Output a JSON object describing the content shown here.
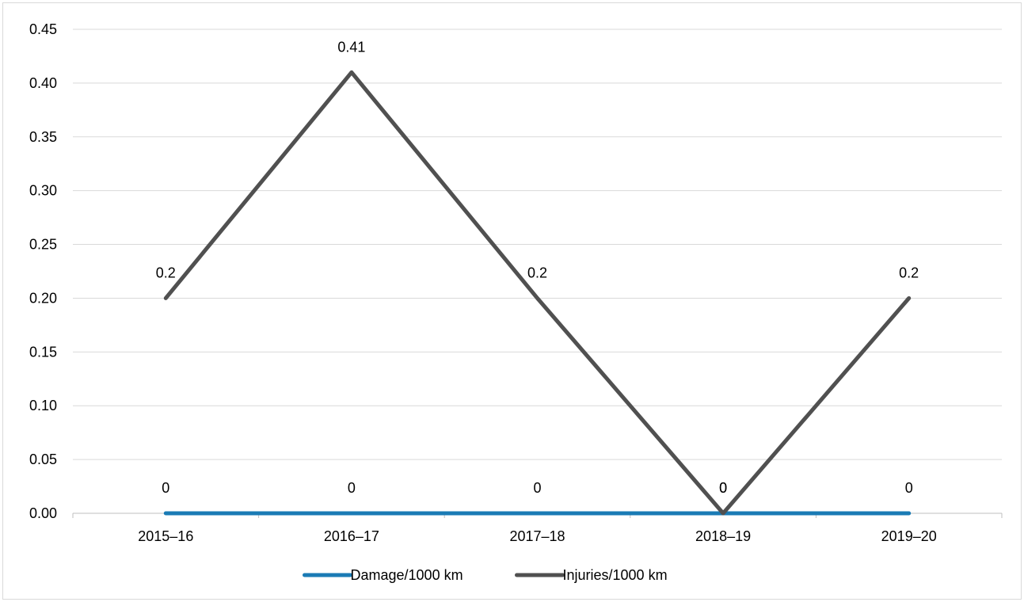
{
  "chart_data": {
    "type": "line",
    "title": "",
    "xlabel": "",
    "ylabel": "",
    "categories": [
      "2015–16",
      "2016–17",
      "2017–18",
      "2018–19",
      "2019–20"
    ],
    "ylim": [
      0,
      0.45
    ],
    "yticks": [
      "0.00",
      "0.05",
      "0.10",
      "0.15",
      "0.20",
      "0.25",
      "0.30",
      "0.35",
      "0.40",
      "0.45"
    ],
    "grid": true,
    "legend_position": "bottom",
    "series": [
      {
        "name": "Damage/1000 km",
        "color": "#1a7bb5",
        "values": [
          0,
          0,
          0,
          0,
          0
        ],
        "labels": [
          "0",
          "0",
          "0",
          "0",
          "0"
        ]
      },
      {
        "name": "Injuries/1000 km",
        "color": "#505050",
        "values": [
          0.2,
          0.41,
          0.2,
          0,
          0.2
        ],
        "labels": [
          "0.2",
          "0.41",
          "0.2",
          "0",
          "0.2"
        ]
      }
    ]
  }
}
